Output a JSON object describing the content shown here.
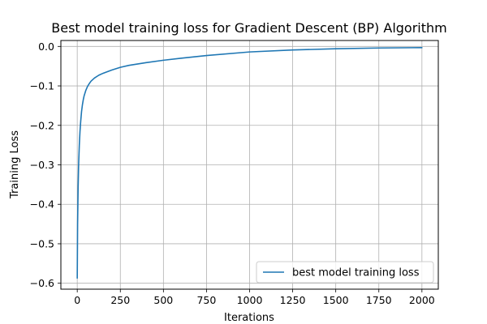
{
  "chart_data": {
    "type": "line",
    "title": "Best model training loss for Gradient Descent (BP) Algorithm",
    "xlabel": "Iterations",
    "ylabel": "Training Loss",
    "xlim": [
      -95,
      2095
    ],
    "ylim": [
      -0.615,
      0.015
    ],
    "grid": true,
    "legend_position": "lower-right",
    "x_ticks": [
      0,
      250,
      500,
      750,
      1000,
      1250,
      1500,
      1750,
      2000
    ],
    "x_tick_labels": [
      "0",
      "250",
      "500",
      "750",
      "1000",
      "1250",
      "1500",
      "1750",
      "2000"
    ],
    "y_ticks": [
      0.0,
      -0.1,
      -0.2,
      -0.3,
      -0.4,
      -0.5,
      -0.6
    ],
    "y_tick_labels": [
      "0.0",
      "−0.1",
      "−0.2",
      "−0.3",
      "−0.4",
      "−0.5",
      "−0.6"
    ],
    "series": [
      {
        "name": "best model training loss",
        "color": "#1f77b4",
        "x": [
          0,
          2,
          5,
          8,
          12,
          16,
          20,
          25,
          30,
          35,
          40,
          50,
          60,
          70,
          80,
          100,
          125,
          150,
          200,
          250,
          300,
          400,
          500,
          600,
          750,
          1000,
          1250,
          1500,
          1750,
          2000
        ],
        "y": [
          -0.587,
          -0.45,
          -0.36,
          -0.3,
          -0.25,
          -0.215,
          -0.19,
          -0.165,
          -0.148,
          -0.135,
          -0.125,
          -0.111,
          -0.101,
          -0.094,
          -0.088,
          -0.08,
          -0.073,
          -0.068,
          -0.06,
          -0.053,
          -0.048,
          -0.041,
          -0.035,
          -0.03,
          -0.023,
          -0.014,
          -0.009,
          -0.006,
          -0.004,
          -0.003
        ]
      }
    ]
  }
}
